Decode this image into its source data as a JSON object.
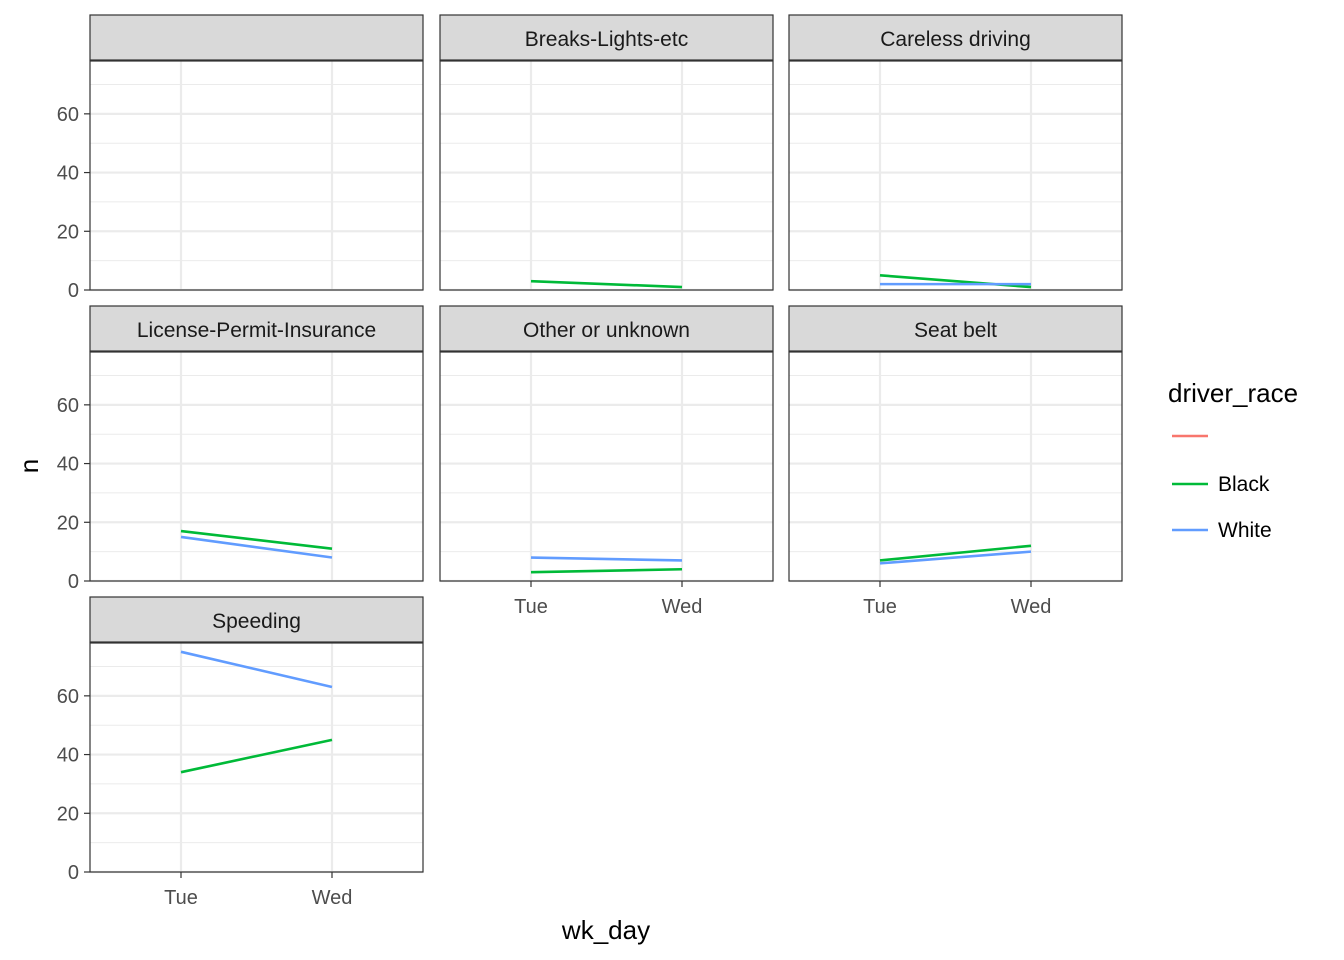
{
  "chart_data": {
    "type": "line",
    "facet_by": "violation",
    "xlabel": "wk_day",
    "ylabel": "n",
    "x": [
      "Tue",
      "Wed"
    ],
    "ylim": [
      0,
      78
    ],
    "y_ticks": [
      0,
      20,
      40,
      60
    ],
    "grid": true,
    "legend": {
      "title": "driver_race",
      "position": "right",
      "entries": [
        {
          "name": "",
          "color": "#F8766D"
        },
        {
          "name": "Black",
          "color": "#00BA38"
        },
        {
          "name": "White",
          "color": "#619CFF"
        }
      ]
    },
    "panels": [
      {
        "label": "",
        "series": []
      },
      {
        "label": "Breaks-Lights-etc",
        "series": [
          {
            "name": "Black",
            "values": [
              3,
              1
            ]
          }
        ]
      },
      {
        "label": "Careless driving",
        "series": [
          {
            "name": "Black",
            "values": [
              5,
              1
            ]
          },
          {
            "name": "White",
            "values": [
              2,
              2
            ]
          }
        ]
      },
      {
        "label": "License-Permit-Insurance",
        "series": [
          {
            "name": "Black",
            "values": [
              17,
              11
            ]
          },
          {
            "name": "White",
            "values": [
              15,
              8
            ]
          }
        ]
      },
      {
        "label": "Other or unknown",
        "series": [
          {
            "name": "Black",
            "values": [
              3,
              4
            ]
          },
          {
            "name": "White",
            "values": [
              8,
              7
            ]
          }
        ]
      },
      {
        "label": "Seat belt",
        "series": [
          {
            "name": "Black",
            "values": [
              7,
              12
            ]
          },
          {
            "name": "White",
            "values": [
              6,
              10
            ]
          }
        ]
      },
      {
        "label": "Speeding",
        "series": [
          {
            "name": "Black",
            "values": [
              34,
              45
            ]
          },
          {
            "name": "White",
            "values": [
              75,
              63
            ]
          }
        ]
      }
    ]
  }
}
